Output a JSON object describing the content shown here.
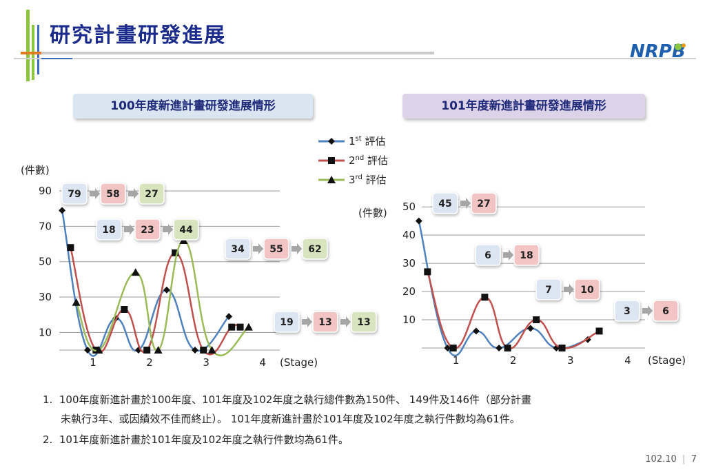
{
  "header": {
    "title": "研究計畫研發進展",
    "logo_text": "NRPB"
  },
  "legend": {
    "entries": [
      {
        "base": "1",
        "sup": "st",
        "text": " 評估"
      },
      {
        "base": "2",
        "sup": "nd",
        "text": " 評估"
      },
      {
        "base": "3",
        "sup": "rd",
        "text": " 評估"
      }
    ]
  },
  "colors": {
    "series1": "#4f81bd",
    "series2": "#c0504d",
    "series3": "#9bbb59",
    "box_blue": "#dce6f2",
    "box_red": "#f2c4c4",
    "box_green": "#d7e4bd"
  },
  "chart_data": [
    {
      "type": "line",
      "title": "100年度新進計畫研發進展情形",
      "ylabel": "(件數)",
      "xlabel": "(Stage)",
      "x": [
        1,
        2,
        3,
        4
      ],
      "yticks": [
        10,
        30,
        50,
        70,
        90
      ],
      "xlim": [
        0.5,
        4.4
      ],
      "ylim": [
        0,
        92
      ],
      "grid": true,
      "series": [
        {
          "points": [
            [
              0.55,
              79
            ],
            [
              1.0,
              0
            ],
            [
              1.5,
              18
            ],
            [
              1.9,
              0
            ],
            [
              2.4,
              34
            ],
            [
              2.9,
              0
            ],
            [
              3.5,
              19
            ]
          ]
        },
        {
          "points": [
            [
              0.7,
              58
            ],
            [
              1.15,
              0
            ],
            [
              1.65,
              23
            ],
            [
              2.05,
              0
            ],
            [
              2.55,
              55
            ],
            [
              3.05,
              0
            ],
            [
              3.55,
              13
            ],
            [
              3.7,
              13
            ]
          ]
        },
        {
          "points": [
            [
              0.8,
              27
            ],
            [
              1.2,
              0
            ],
            [
              1.85,
              44
            ],
            [
              2.25,
              0
            ],
            [
              2.7,
              62
            ],
            [
              3.2,
              0
            ],
            [
              3.85,
              13
            ]
          ]
        }
      ],
      "boxes": [
        {
          "values": [
            "79",
            "58",
            "27"
          ]
        },
        {
          "values": [
            "18",
            "23",
            "44"
          ]
        },
        {
          "values": [
            "34",
            "55",
            "62"
          ]
        },
        {
          "values": [
            "19",
            "13",
            "13"
          ]
        }
      ]
    },
    {
      "type": "line",
      "title": "101年度新進計畫研發進展情形",
      "ylabel": "(件數)",
      "xlabel": "(Stage)",
      "x": [
        1,
        2,
        3,
        4
      ],
      "yticks": [
        10,
        20,
        30,
        40,
        50
      ],
      "xlim": [
        0.5,
        4.4
      ],
      "ylim": [
        0,
        52
      ],
      "grid": true,
      "series": [
        {
          "points": [
            [
              0.45,
              45
            ],
            [
              0.95,
              0
            ],
            [
              1.45,
              6
            ],
            [
              1.85,
              0
            ],
            [
              2.4,
              7
            ],
            [
              2.85,
              0
            ],
            [
              3.4,
              3
            ]
          ]
        },
        {
          "points": [
            [
              0.6,
              27
            ],
            [
              1.05,
              0
            ],
            [
              1.6,
              18
            ],
            [
              2.0,
              0
            ],
            [
              2.5,
              10
            ],
            [
              2.95,
              0
            ],
            [
              3.6,
              6
            ]
          ]
        }
      ],
      "boxes": [
        {
          "values": [
            "45",
            "27"
          ]
        },
        {
          "values": [
            "6",
            "18"
          ]
        },
        {
          "values": [
            "7",
            "10"
          ]
        },
        {
          "values": [
            "3",
            "6"
          ]
        }
      ]
    }
  ],
  "notes": [
    {
      "num": "1.",
      "line1": "100年度新進計畫於100年度、101年度及102年度之執行總件數為150件、 149件及146件（部分計畫",
      "line2": "未執行3年、或因績效不佳而終止）。 101年度新進計畫於101年度及102年度之執行件數均為61件。"
    },
    {
      "num": "2.",
      "line1": "101年度新進計畫於101年度及102年度之執行件數均為61件。"
    }
  ],
  "footer": {
    "date": "102.10",
    "page": "7"
  }
}
